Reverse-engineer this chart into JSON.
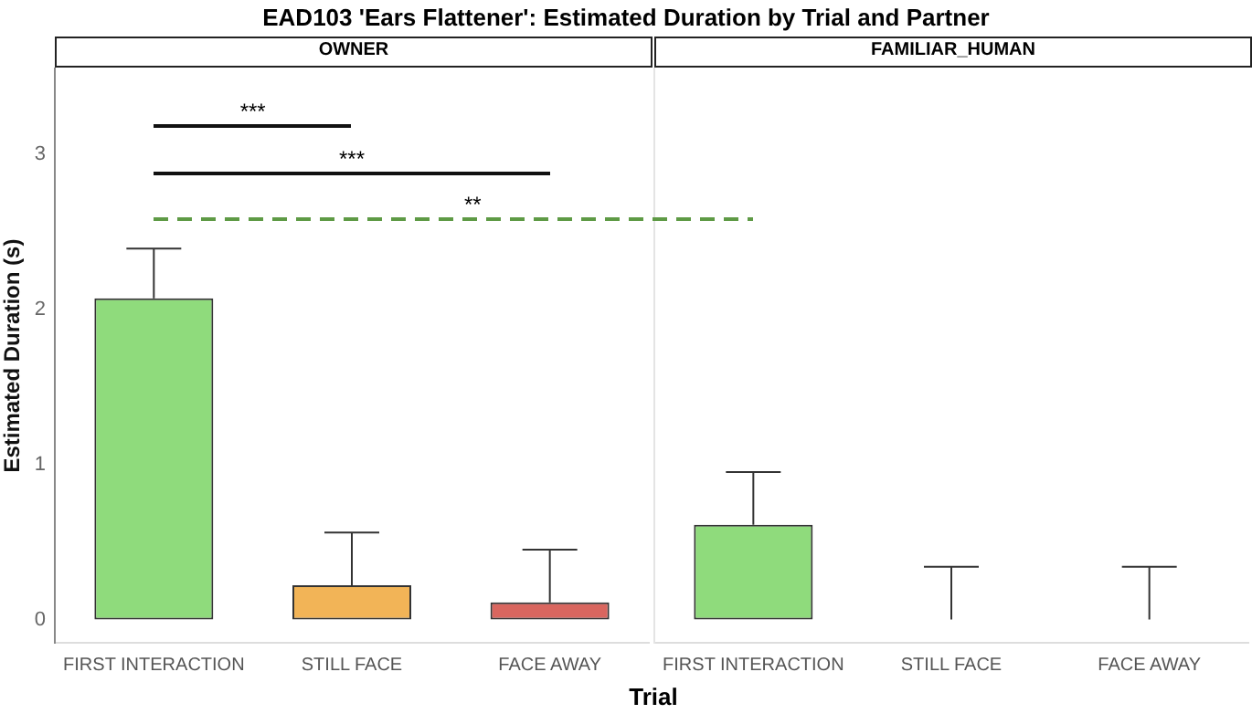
{
  "chart_data": [
    {
      "type": "bar",
      "title": "EAD103 'Ears Flattener': Estimated Duration by Trial and Partner",
      "subtitle": "OWNER",
      "xlabel": "Trial",
      "ylabel": "Estimated Duration (s)",
      "categories": [
        "FIRST INTERACTION",
        "STILL FACE",
        "FACE AWAY"
      ],
      "values": [
        2.07,
        0.22,
        0.11
      ],
      "colors": [
        "#8fdb7c",
        "#f2b457",
        "#d9665f"
      ],
      "errors": [
        [
          2.07,
          2.39
        ],
        [
          0.22,
          0.56
        ],
        [
          0.11,
          0.45
        ]
      ],
      "ylim": [
        -0.15,
        3.55
      ],
      "yticks": [
        0,
        1,
        2,
        3
      ],
      "grid": false,
      "annotations": [
        "***",
        "***",
        "**"
      ]
    },
    {
      "type": "bar",
      "subtitle": "FAMILIAR_HUMAN",
      "categories": [
        "FIRST INTERACTION",
        "STILL FACE",
        "FACE AWAY"
      ],
      "values": [
        0.61,
        0,
        0
      ],
      "colors": [
        "#8fdb7c",
        "#f2b457",
        "#d9665f"
      ],
      "errors": [
        [
          0.61,
          0.95
        ],
        [
          0,
          0.34
        ],
        [
          0,
          0.34
        ]
      ],
      "ylim": [
        -0.15,
        3.55
      ],
      "yticks": [
        0,
        1,
        2,
        3
      ],
      "grid": false,
      "tick_labels": "x"
    }
  ]
}
